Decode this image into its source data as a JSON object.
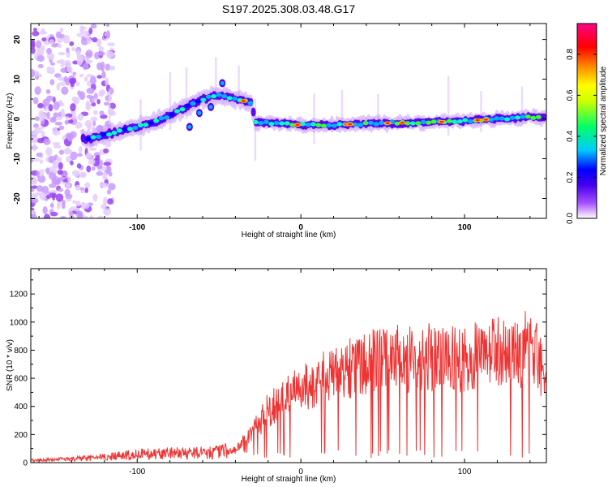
{
  "title": "S197.2025.308.03.48.G17",
  "chart_data": [
    {
      "type": "heatmap",
      "xlabel": "Height of straight line (km)",
      "ylabel": "Frequency (Hz)",
      "xlim": [
        -165,
        150
      ],
      "ylim": [
        -25,
        24
      ],
      "xticks": [
        -100,
        0,
        100
      ],
      "yticks": [
        -20,
        -10,
        0,
        10,
        20
      ],
      "colorbar": {
        "label": "Normalized spectral amplitude",
        "range": [
          0,
          0.95
        ],
        "ticks": [
          "0.0",
          "0.2",
          "0.4",
          "0.6",
          "0.8"
        ],
        "ticks_values": [
          0.0,
          0.2,
          0.4,
          0.6,
          0.8
        ],
        "colors": [
          "#ffffff",
          "#a64dff",
          "#4400ee",
          "#0000ff",
          "#00ccff",
          "#00ff66",
          "#ccff00",
          "#ffff00",
          "#ff8800",
          "#ff0000",
          "#ff0088"
        ]
      },
      "ridge": {
        "x": [
          -130,
          -120,
          -110,
          -100,
          -90,
          -80,
          -70,
          -60,
          -50,
          -40,
          -30,
          -28,
          -20,
          0,
          20,
          40,
          60,
          80,
          100,
          120,
          140,
          148
        ],
        "freq": [
          -5,
          -4,
          -3,
          -2,
          -1,
          1,
          3,
          5,
          6,
          5,
          4,
          -1,
          -1,
          -1.5,
          -1.5,
          -1.2,
          -1,
          -0.8,
          -0.5,
          0,
          0.5,
          0.3
        ]
      }
    },
    {
      "type": "line",
      "xlabel": "Height of straight line (km)",
      "ylabel": "SNR (10 * v/v)",
      "xlim": [
        -165,
        150
      ],
      "ylim": [
        0,
        1380
      ],
      "xticks": [
        -100,
        0,
        100
      ],
      "yticks": [
        0,
        200,
        400,
        600,
        800,
        1000,
        1200
      ],
      "series": [
        {
          "name": "SNR",
          "color": "#ee3333",
          "x": [
            -165,
            -140,
            -120,
            -100,
            -80,
            -60,
            -50,
            -40,
            -30,
            -20,
            -10,
            0,
            10,
            20,
            30,
            40,
            50,
            60,
            70,
            80,
            90,
            100,
            110,
            120,
            130,
            140,
            150
          ],
          "values": [
            20,
            30,
            45,
            70,
            80,
            85,
            90,
            110,
            250,
            450,
            560,
            620,
            700,
            760,
            820,
            860,
            880,
            900,
            880,
            910,
            880,
            890,
            920,
            960,
            940,
            1000,
            760
          ]
        }
      ]
    }
  ]
}
